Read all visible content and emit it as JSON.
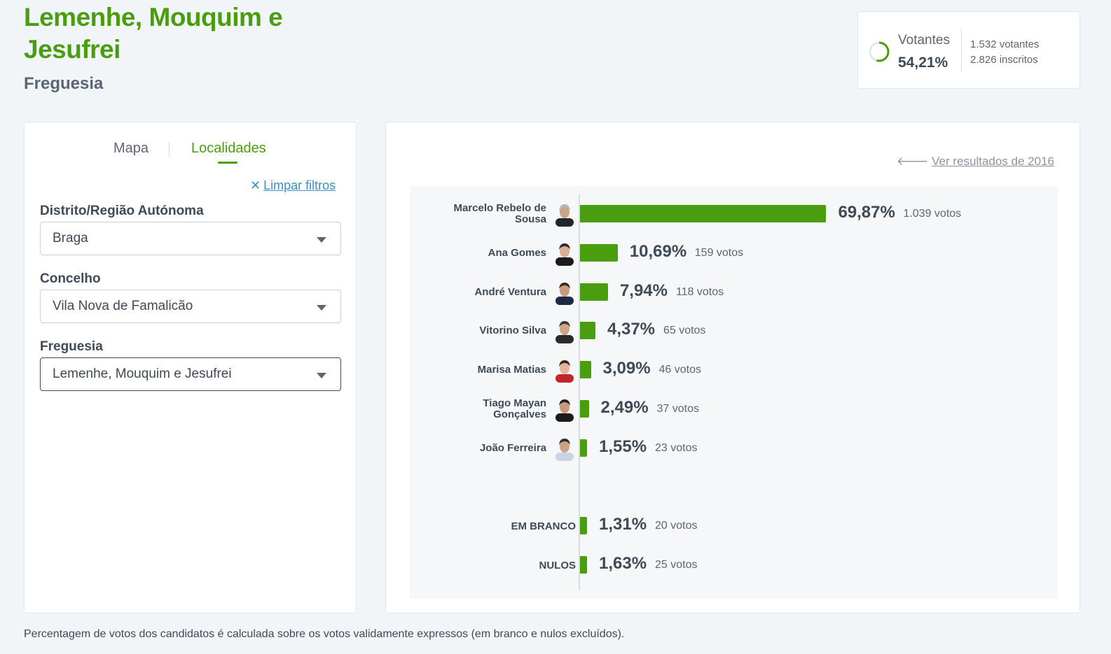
{
  "header": {
    "title": "Lemenhe, Mouquim e Jesufrei",
    "subtitle": "Freguesia"
  },
  "voters": {
    "label": "Votantes",
    "percent": "54,21%",
    "percent_value": 54.21,
    "voters": "1.532 votantes",
    "registered": "2.826 inscritos",
    "ring_color": "#4a9d0f"
  },
  "filters": {
    "tabs": [
      {
        "label": "Mapa",
        "active": false
      },
      {
        "label": "Localidades",
        "active": true
      }
    ],
    "clear_icon": "close-icon",
    "clear_label": "Limpar filtros",
    "district_label": "Distrito/Região Autónoma",
    "district_value": "Braga",
    "council_label": "Concelho",
    "council_value": "Vila Nova de Famalicão",
    "parish_label": "Freguesia",
    "parish_value": "Lemenhe, Mouquim e Jesufrei"
  },
  "results": {
    "prev_link": "Ver resultados de 2016",
    "prev_icon": "arrow-left-icon",
    "bar_color": "#4a9d0f"
  },
  "chart_data": {
    "type": "bar",
    "orientation": "horizontal",
    "categories": [
      "Marcelo Rebelo de Sousa",
      "Ana Gomes",
      "André Ventura",
      "Vitorino Silva",
      "Marisa Matias",
      "Tiago Mayan Gonçalves",
      "João Ferreira",
      "EM BRANCO",
      "NULOS"
    ],
    "series": [
      {
        "values": [
          69.87,
          10.69,
          7.94,
          4.37,
          3.09,
          2.49,
          1.55,
          1.31,
          1.63
        ]
      }
    ],
    "percent_labels": [
      "69,87%",
      "10,69%",
      "7,94%",
      "4,37%",
      "3,09%",
      "2,49%",
      "1,55%",
      "1,31%",
      "1,63%"
    ],
    "votes": [
      1039,
      159,
      118,
      65,
      46,
      37,
      23,
      20,
      25
    ],
    "vote_labels": [
      "1.039 votos",
      "159 votos",
      "118 votos",
      "65 votos",
      "46 votos",
      "37 votos",
      "23 votos",
      "20 votos",
      "25 votos"
    ],
    "xlim": [
      0,
      100
    ]
  },
  "footnote": "Percentagem de votos dos candidatos é calculada sobre os votos validamente expressos (em branco e nulos excluídos)."
}
